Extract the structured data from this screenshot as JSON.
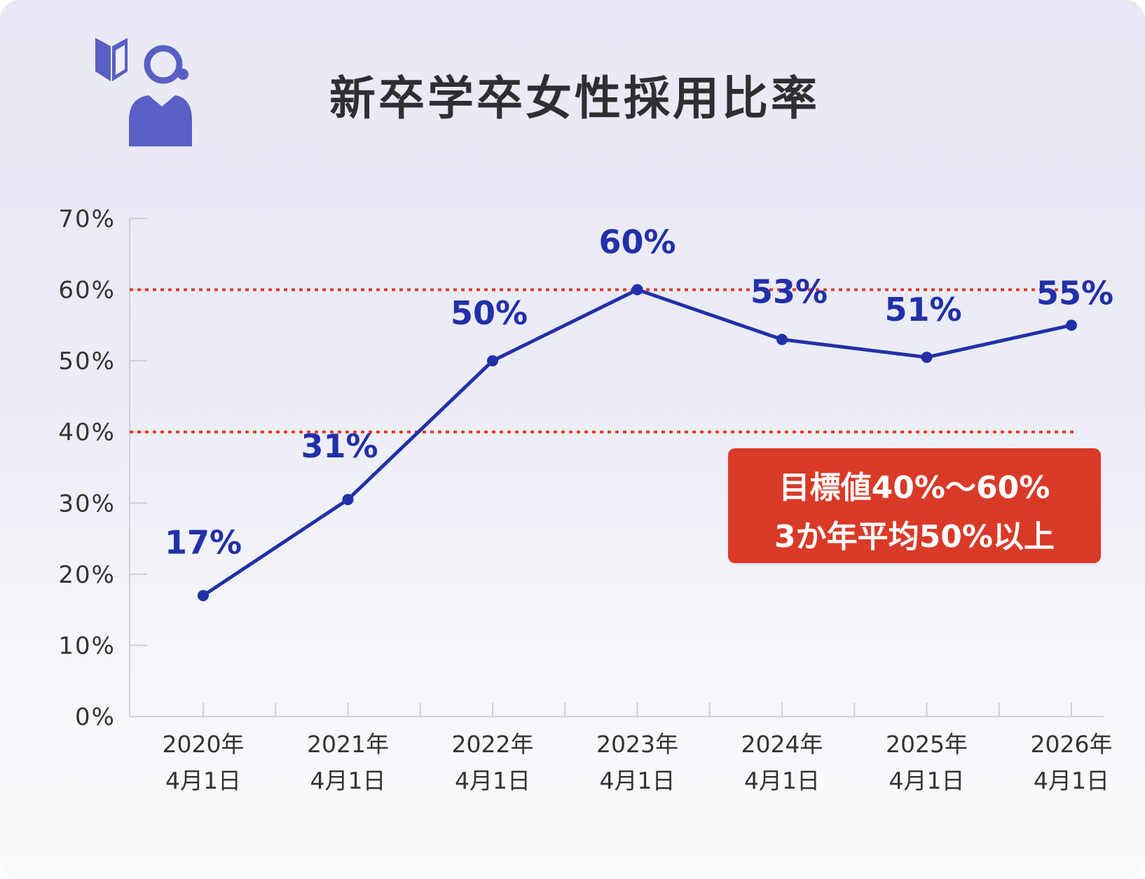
{
  "title": "新卒学卒女性採用比率",
  "icon": "beginner-mark-and-woman-icon",
  "colors": {
    "line": "#2230a8",
    "target_line": "#e03a2a",
    "target_box": "#d93a28",
    "axis_text": "#333333",
    "icon": "#5a5fc4"
  },
  "chart_data": {
    "type": "line",
    "categories": [
      "2020年\n4月1日",
      "2021年\n4月1日",
      "2022年\n4月1日",
      "2023年\n4月1日",
      "2024年\n4月1日",
      "2025年\n4月1日",
      "2026年\n4月1日"
    ],
    "category_lines": [
      [
        "2020年",
        "4月1日"
      ],
      [
        "2021年",
        "4月1日"
      ],
      [
        "2022年",
        "4月1日"
      ],
      [
        "2023年",
        "4月1日"
      ],
      [
        "2024年",
        "4月1日"
      ],
      [
        "2025年",
        "4月1日"
      ],
      [
        "2026年",
        "4月1日"
      ]
    ],
    "series": [
      {
        "values": [
          17,
          30.5,
          50,
          60,
          53,
          50.5,
          55
        ]
      }
    ],
    "data_labels": [
      "17%",
      "31%",
      "50%",
      "60%",
      "53%",
      "51%",
      "55%"
    ],
    "yticks": [
      "0%",
      "10%",
      "20%",
      "30%",
      "40%",
      "50%",
      "60%",
      "70%"
    ],
    "ylim": [
      0,
      70
    ],
    "reference_lines": [
      40,
      60
    ],
    "annotation": {
      "line1": "目標値40%〜60%",
      "line2": "3か年平均50%以上"
    },
    "grid": false
  }
}
